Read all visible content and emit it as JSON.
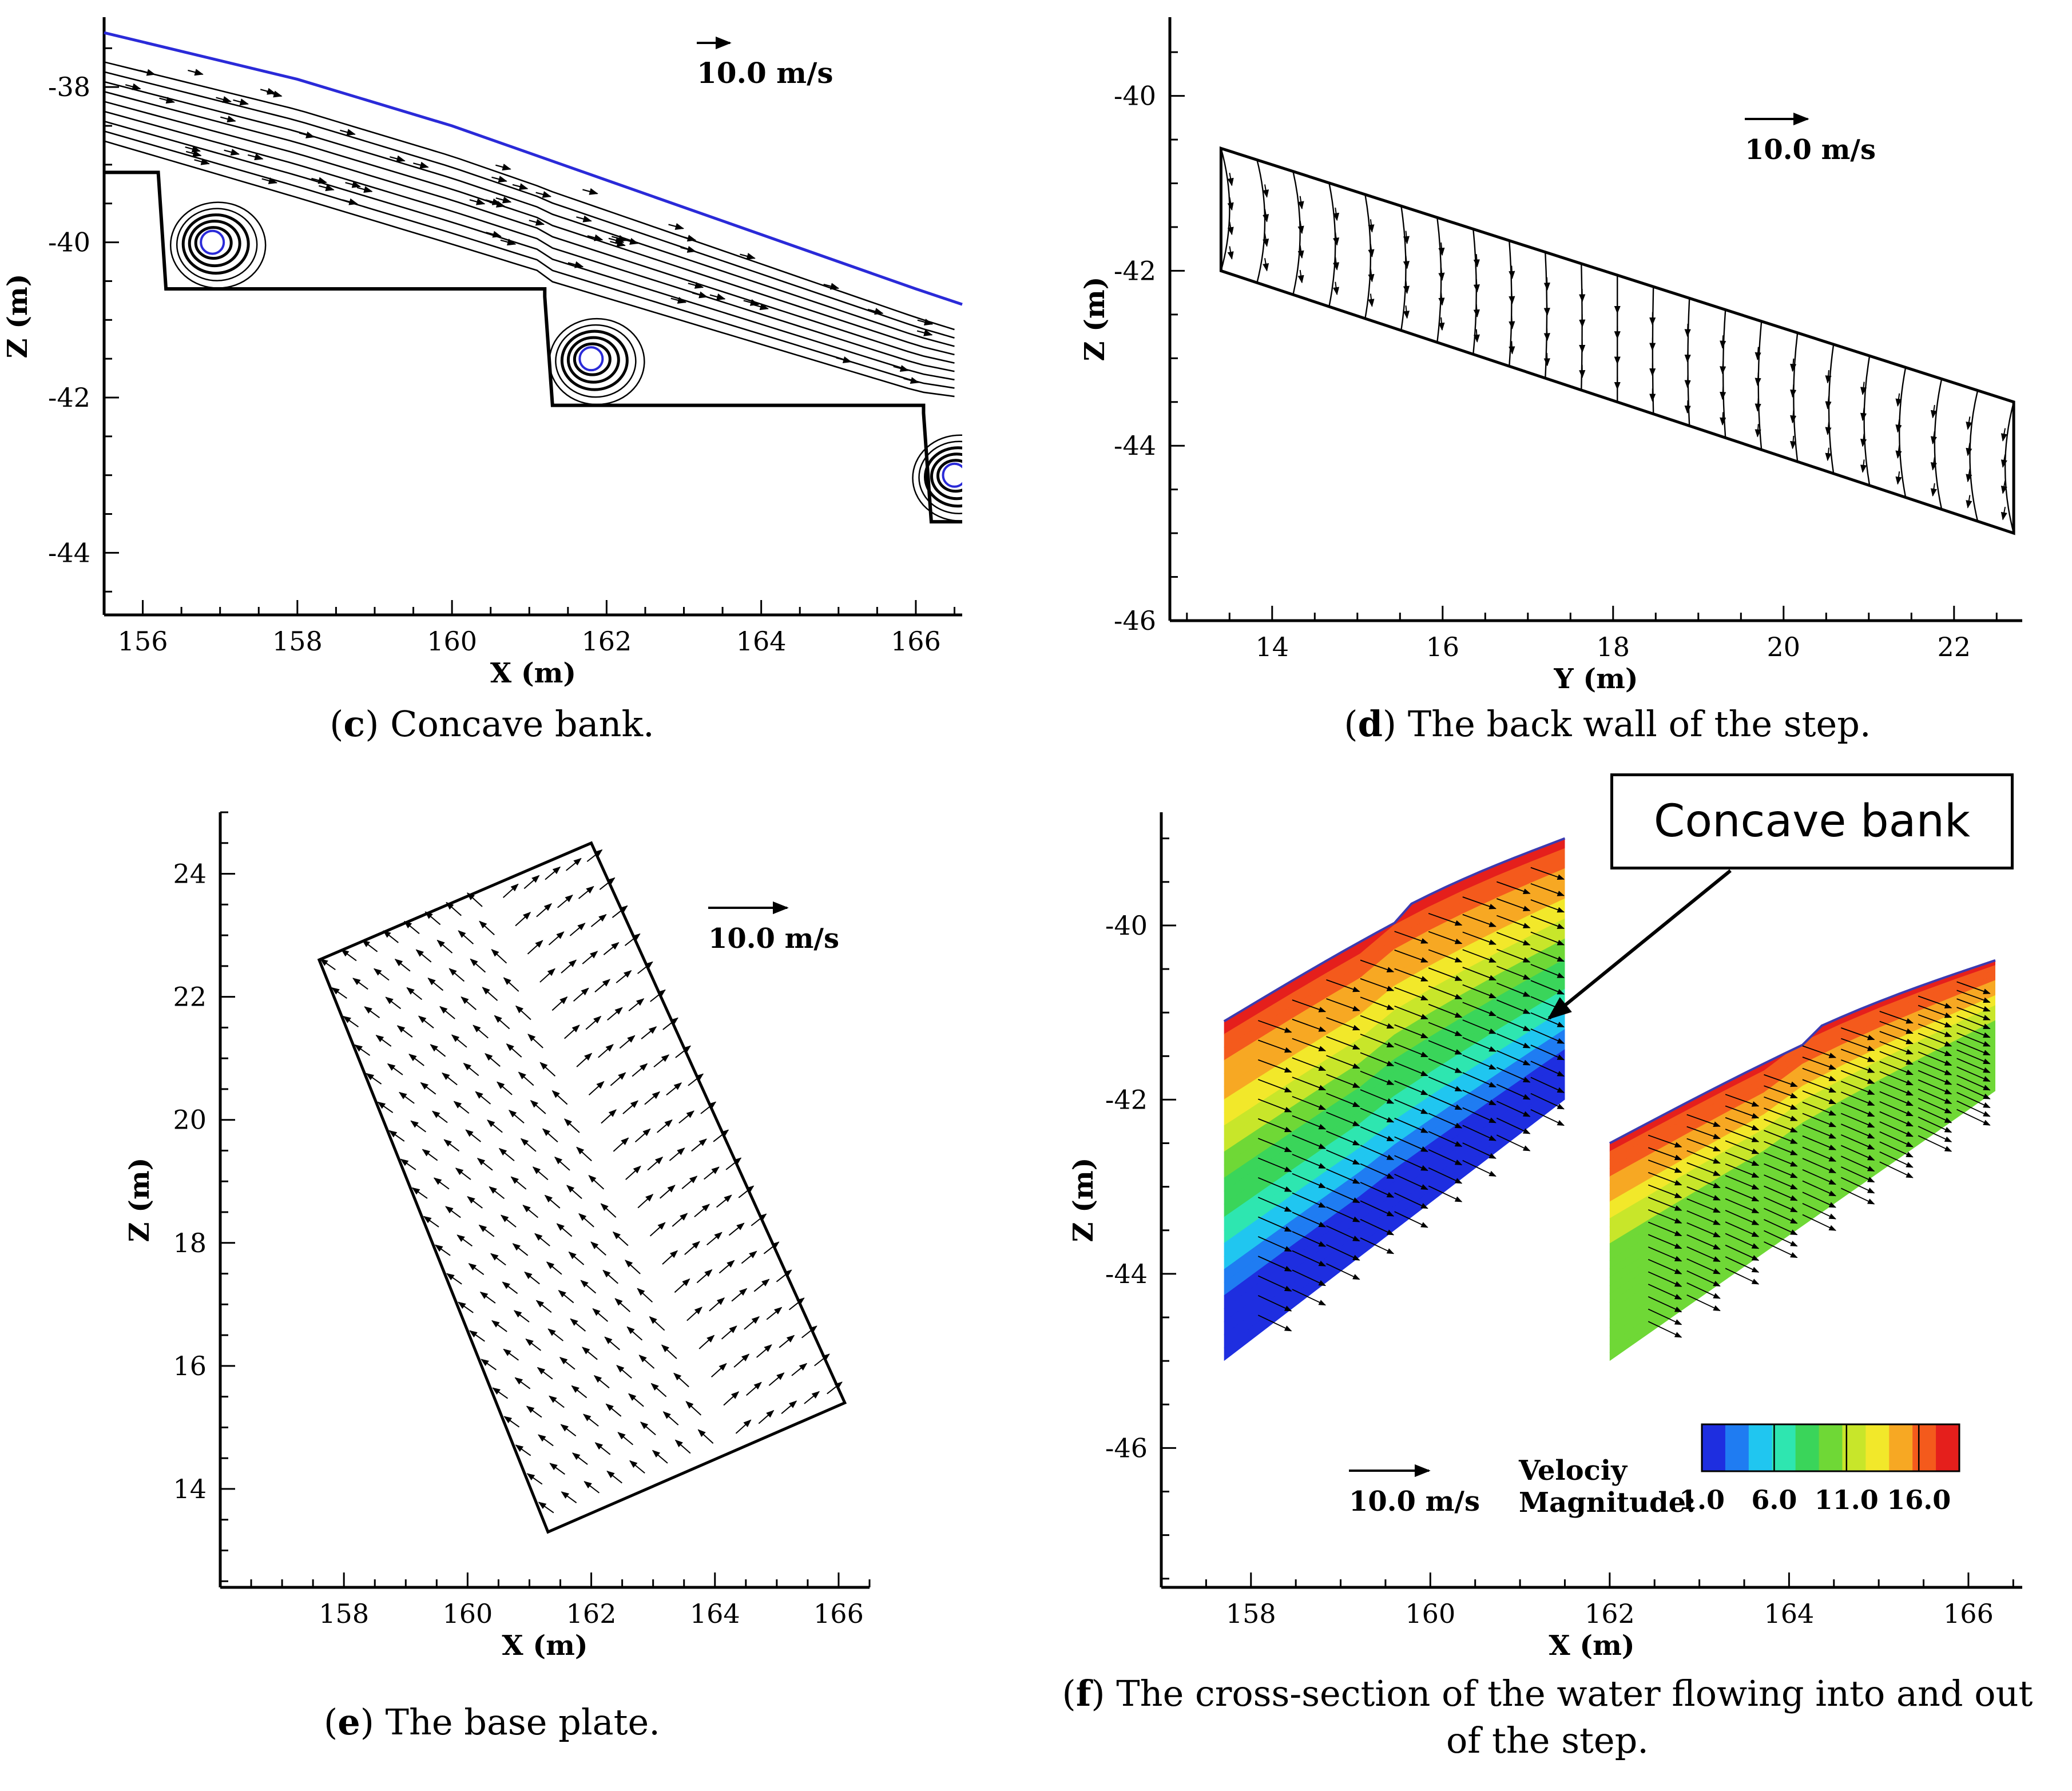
{
  "chart_data": [
    {
      "id": "c",
      "type": "line",
      "subtype": "streamline-vector-plot",
      "title": "Concave bank.",
      "panel_letter": "c",
      "xlabel": "X (m)",
      "ylabel": "Z (m)",
      "xlim": [
        155.5,
        166.6
      ],
      "ylim": [
        -44.8,
        -37.1
      ],
      "xticks": [
        "156",
        "158",
        "160",
        "162",
        "164",
        "166"
      ],
      "yticks": [
        "-38",
        "-40",
        "-42",
        "-44"
      ],
      "xtick_values": [
        156,
        158,
        160,
        162,
        164,
        166
      ],
      "ytick_values": [
        -38,
        -40,
        -42,
        -44
      ],
      "scale_label": "10.0 m/s",
      "water_surface": {
        "x": [
          155.5,
          158,
          160,
          162,
          164,
          166,
          166.6
        ],
        "z": [
          -37.3,
          -37.9,
          -38.5,
          -39.2,
          -39.9,
          -40.6,
          -40.8
        ],
        "color": "#2a2ad8"
      },
      "step_outline": {
        "x": [
          155.5,
          156.2,
          156.3,
          161.2,
          161.2,
          161.3,
          166.1,
          166.1,
          166.2,
          166.6
        ],
        "z": [
          -39.1,
          -39.1,
          -40.6,
          -40.6,
          -40.7,
          -42.1,
          -42.1,
          -42.2,
          -43.6,
          -43.6
        ]
      },
      "vortices": [
        {
          "x": 156.9,
          "z": -40.0
        },
        {
          "x": 161.8,
          "z": -41.5
        },
        {
          "x": 166.5,
          "z": -43.0
        }
      ]
    },
    {
      "id": "d",
      "type": "line",
      "subtype": "streamline-vector-plot",
      "title": "The back wall of the step.",
      "panel_letter": "d",
      "xlabel": "Y (m)",
      "ylabel": "Z (m)",
      "xlim": [
        12.8,
        22.8
      ],
      "ylim": [
        -46.0,
        -39.1
      ],
      "xticks": [
        "14",
        "16",
        "18",
        "20",
        "22"
      ],
      "yticks": [
        "-40",
        "-42",
        "-44",
        "-46"
      ],
      "xtick_values": [
        14,
        16,
        18,
        20,
        22
      ],
      "ytick_values": [
        -40,
        -42,
        -44,
        -46
      ],
      "scale_label": "10.0 m/s",
      "wall_polygon": {
        "y": [
          13.4,
          22.7,
          22.7,
          13.4
        ],
        "z": [
          -40.6,
          -43.5,
          -45.0,
          -42.0
        ]
      }
    },
    {
      "id": "e",
      "type": "scatter",
      "subtype": "vector-plot",
      "title": "The base plate.",
      "panel_letter": "e",
      "xlabel": "X (m)",
      "ylabel": "Z (m)",
      "xlim": [
        156.0,
        166.5
      ],
      "ylim": [
        12.4,
        25.0
      ],
      "xticks": [
        "158",
        "160",
        "162",
        "164",
        "166"
      ],
      "yticks": [
        "14",
        "16",
        "18",
        "20",
        "22",
        "24"
      ],
      "xtick_values": [
        158,
        160,
        162,
        164,
        166
      ],
      "ytick_values": [
        14,
        16,
        18,
        20,
        22,
        24
      ],
      "scale_label": "10.0  m/s",
      "plate_polygon": {
        "x": [
          157.6,
          162.0,
          166.1,
          161.3
        ],
        "z": [
          22.6,
          24.5,
          15.4,
          13.3
        ]
      }
    },
    {
      "id": "f",
      "type": "heatmap",
      "subtype": "contour-vector-plot",
      "title": "The cross-section of the water flowing into and out of the step.",
      "panel_letter": "f",
      "xlabel": "X (m)",
      "ylabel": "Z (m)",
      "xlim": [
        157.0,
        166.6
      ],
      "ylim": [
        -47.6,
        -38.7
      ],
      "xticks": [
        "158",
        "160",
        "162",
        "164",
        "166"
      ],
      "yticks": [
        "-40",
        "-42",
        "-44",
        "-46"
      ],
      "xtick_values": [
        158,
        160,
        162,
        164,
        166
      ],
      "ytick_values": [
        -40,
        -42,
        -44,
        -46
      ],
      "scale_label": "10.0   m/s",
      "legend_title_1": "Velociy",
      "legend_title_2": "Magnitude:",
      "legend_values": [
        "1.0",
        "6.0",
        "11.0",
        "16.0"
      ],
      "legend_range": [
        1.0,
        18.8
      ],
      "colormap": [
        "#1e2ee0",
        "#1f7cf2",
        "#20c6f0",
        "#2ee6b0",
        "#3ad55a",
        "#6fd836",
        "#c8e62a",
        "#f2e82a",
        "#f7a823",
        "#f45a1c",
        "#e51f1c"
      ],
      "annotation": "Concave bank",
      "sections": [
        {
          "x_left": 157.7,
          "x_right": 161.5,
          "top_left": -41.1,
          "top_right": -39.0,
          "bottom_left": -45.0,
          "bottom_right": -42.0
        },
        {
          "x_left": 162.0,
          "x_right": 166.3,
          "top_left": -42.5,
          "top_right": -40.4,
          "bottom_left": -45.0,
          "bottom_right": -41.9
        }
      ]
    }
  ],
  "captions": {
    "c": {
      "letter": "c",
      "text": "Concave bank."
    },
    "d": {
      "letter": "d",
      "text": "The back wall of the step."
    },
    "e": {
      "letter": "e",
      "text": "The base plate."
    },
    "f": {
      "letter": "f",
      "text_line1": "The cross-section of the water flowing into and out",
      "text_line2": "of the step."
    }
  }
}
